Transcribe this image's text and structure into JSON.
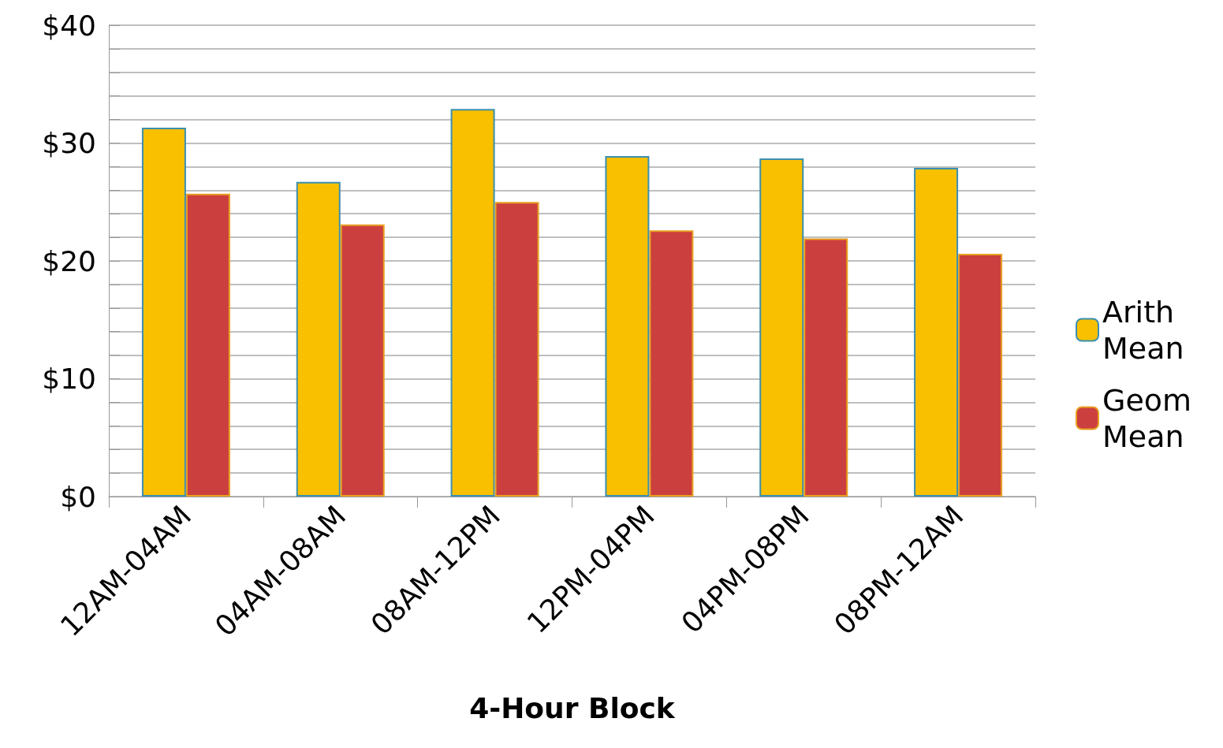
{
  "chart_data": {
    "type": "bar",
    "xlabel": "4-Hour Block",
    "categories": [
      "12AM-04AM",
      "04AM-08AM",
      "08AM-12PM",
      "12PM-04PM",
      "04PM-08PM",
      "08PM-12AM"
    ],
    "series": [
      {
        "name": "Arith Mean",
        "color": "#f9c000",
        "values": [
          31.3,
          26.7,
          32.9,
          28.9,
          28.7,
          27.9
        ]
      },
      {
        "name": "Geom Mean",
        "color": "#cc3f3f",
        "values": [
          25.7,
          23.1,
          25.0,
          22.6,
          21.9,
          20.6
        ]
      }
    ],
    "ylim": [
      0,
      40
    ],
    "yticks": [
      {
        "value": 0,
        "label": "$0"
      },
      {
        "value": 2,
        "label": null
      },
      {
        "value": 4,
        "label": null
      },
      {
        "value": 6,
        "label": null
      },
      {
        "value": 8,
        "label": null
      },
      {
        "value": 10,
        "label": "$10"
      },
      {
        "value": 12,
        "label": null
      },
      {
        "value": 14,
        "label": null
      },
      {
        "value": 16,
        "label": null
      },
      {
        "value": 18,
        "label": null
      },
      {
        "value": 20,
        "label": "$20"
      },
      {
        "value": 22,
        "label": null
      },
      {
        "value": 24,
        "label": null
      },
      {
        "value": 26,
        "label": null
      },
      {
        "value": 28,
        "label": null
      },
      {
        "value": 30,
        "label": "$30"
      },
      {
        "value": 32,
        "label": null
      },
      {
        "value": 34,
        "label": null
      },
      {
        "value": 36,
        "label": null
      },
      {
        "value": 38,
        "label": null
      },
      {
        "value": 40,
        "label": "$40"
      }
    ],
    "grid": "y",
    "legend": "right"
  }
}
